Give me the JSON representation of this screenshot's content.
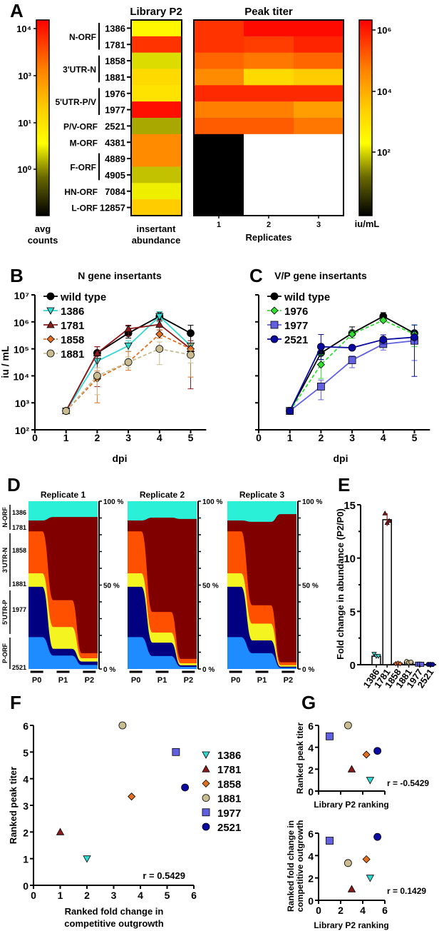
{
  "panel_labels": [
    "A",
    "B",
    "C",
    "D",
    "E",
    "F",
    "G"
  ],
  "chart_data": [
    {
      "panel": "A",
      "type": "heatmap",
      "library_title": "Library P2",
      "peak_title": "Peak titer",
      "rows": [
        "1386",
        "1781",
        "1858",
        "1881",
        "1976",
        "1977",
        "2521",
        "4381",
        "4889",
        "4905",
        "7084",
        "12857"
      ],
      "groups": [
        {
          "name": "N-ORF",
          "rows": [
            0,
            1
          ]
        },
        {
          "name": "3'UTR-N",
          "rows": [
            2,
            3
          ]
        },
        {
          "name": "5'UTR-P/V",
          "rows": [
            4,
            5
          ]
        },
        {
          "name": "P/V-ORF",
          "rows": [
            6
          ]
        },
        {
          "name": "M-ORF",
          "rows": [
            7
          ]
        },
        {
          "name": "F-ORF",
          "rows": [
            8,
            9
          ]
        },
        {
          "name": "HN-ORF",
          "rows": [
            10
          ]
        },
        {
          "name": "L-ORF",
          "rows": [
            11
          ]
        }
      ],
      "library_levels": [
        0.4,
        0.9,
        0.33,
        0.5,
        0.47,
        0.97,
        0.27,
        0.72,
        0.72,
        0.3,
        0.35,
        0.55
      ],
      "peak_levels": [
        [
          0.9,
          0.98,
          0.98
        ],
        [
          0.9,
          0.88,
          0.93
        ],
        [
          0.8,
          0.77,
          0.8
        ],
        [
          0.72,
          0.5,
          0.55
        ],
        [
          0.92,
          0.92,
          0.92
        ],
        [
          0.75,
          0.75,
          0.67
        ],
        [
          0.82,
          0.82,
          0.77
        ],
        [
          0,
          null,
          null
        ],
        [
          0,
          null,
          null
        ],
        [
          0,
          null,
          null
        ],
        [
          0,
          null,
          null
        ],
        [
          0,
          null,
          null
        ]
      ],
      "colormap": [
        "#000000",
        "#6b6b00",
        "#ffff00",
        "#ffcc00",
        "#ff8000",
        "#ff0000"
      ],
      "left_colorbar": {
        "ticks": [
          "10⁴",
          "10³",
          "10¹",
          "10⁰"
        ],
        "label_lines": [
          "avg",
          "counts"
        ]
      },
      "right_colorbar": {
        "ticks": [
          "10⁶",
          "10⁴",
          "10²"
        ],
        "label": "iu/mL"
      },
      "library_xlabel_lines": [
        "insertant",
        "abundance"
      ],
      "replicate_ticks": [
        "1",
        "2",
        "3"
      ],
      "xlabel": "Replicates"
    },
    {
      "panel": "B",
      "type": "line",
      "title": "N gene insertants",
      "xlabel": "dpi",
      "ylabel": "iu / mL",
      "yscale": "log",
      "ylim": [
        100,
        10000000
      ],
      "xlim": [
        0,
        5.5
      ],
      "x_ticks": [
        "0",
        "1",
        "2",
        "3",
        "4",
        "5"
      ],
      "y_ticks": [
        "10²",
        "10³",
        "10⁴",
        "10⁵",
        "10⁶",
        "10⁷"
      ],
      "x": [
        1,
        2,
        3,
        4,
        5
      ],
      "series": [
        {
          "name": "wild type",
          "color": "#000000",
          "marker": "circle",
          "dashed": false,
          "values": [
            500,
            70000,
            380000,
            1600000,
            380000
          ],
          "upper": [
            600,
            120000,
            700000,
            2300000,
            750000
          ],
          "lower": [
            400,
            40000,
            250000,
            1100000,
            150000
          ]
        },
        {
          "name": "1386",
          "color": "#30d8d0",
          "marker": "triangle-down",
          "dashed": false,
          "values": [
            500,
            35000,
            130000,
            1600000,
            130000
          ],
          "upper": [
            600,
            60000,
            200000,
            2400000,
            200000
          ],
          "lower": [
            400,
            20000,
            80000,
            1000000,
            80000
          ]
        },
        {
          "name": "1781",
          "color": "#8b1a1a",
          "marker": "triangle-up",
          "dashed": false,
          "values": [
            500,
            70000,
            550000,
            800000,
            100000
          ],
          "upper": [
            600,
            120000,
            750000,
            1100000,
            200000
          ],
          "lower": [
            400,
            4000,
            300000,
            500000,
            3300
          ]
        },
        {
          "name": "1858",
          "color": "#e07020",
          "marker": "diamond",
          "dashed": true,
          "values": [
            500,
            8000,
            32000,
            350000,
            100000
          ],
          "upper": [
            600,
            15000,
            80000,
            500000,
            150000
          ],
          "lower": [
            400,
            1000,
            16000,
            250000,
            9000
          ]
        },
        {
          "name": "1881",
          "color": "#c8bc90",
          "marker": "circle",
          "dashed": true,
          "values": [
            500,
            10000,
            32000,
            100000,
            60000
          ],
          "upper": [
            600,
            20000,
            50000,
            180000,
            90000
          ],
          "lower": [
            400,
            2000,
            20000,
            26000,
            30000
          ]
        }
      ]
    },
    {
      "panel": "C",
      "type": "line",
      "title": "V/P gene insertants",
      "xlabel": "dpi",
      "yscale": "log",
      "ylim": [
        100,
        10000000
      ],
      "xlim": [
        0,
        5.5
      ],
      "x_ticks": [
        "0",
        "1",
        "2",
        "3",
        "4",
        "5"
      ],
      "x": [
        1,
        2,
        3,
        4,
        5
      ],
      "series": [
        {
          "name": "wild type",
          "color": "#000000",
          "marker": "circle",
          "dashed": false,
          "values": [
            500,
            70000,
            380000,
            1600000,
            380000
          ],
          "upper": [
            600,
            100000,
            650000,
            2200000,
            750000
          ],
          "lower": [
            400,
            40000,
            250000,
            1100000,
            150000
          ]
        },
        {
          "name": "1976",
          "color": "#30e030",
          "marker": "diamond",
          "dashed": true,
          "values": [
            500,
            26000,
            350000,
            1150000,
            350000
          ],
          "upper": [
            600,
            60000,
            450000,
            1300000,
            750000
          ],
          "lower": [
            400,
            8000,
            250000,
            1000000,
            120000
          ]
        },
        {
          "name": "1977",
          "color": "#6060e0",
          "marker": "square",
          "dashed": false,
          "values": [
            500,
            4000,
            38000,
            150000,
            200000
          ],
          "upper": [
            600,
            7000,
            55000,
            260000,
            300000
          ],
          "lower": [
            400,
            1300,
            20000,
            90000,
            37000
          ]
        },
        {
          "name": "2521",
          "color": "#0a0aa0",
          "marker": "circle",
          "dashed": false,
          "values": [
            500,
            120000,
            110000,
            220000,
            270000
          ],
          "upper": [
            600,
            340000,
            120000,
            330000,
            770000
          ],
          "lower": [
            400,
            40000,
            100000,
            150000,
            9500
          ]
        }
      ]
    },
    {
      "panel": "D",
      "type": "area",
      "stages": [
        "P0",
        "P1",
        "P2"
      ],
      "insertants": [
        "1386",
        "1781",
        "1858",
        "1881",
        "1977",
        "2521"
      ],
      "colors": [
        "#2af0d8",
        "#800000",
        "#ff5000",
        "#f4f420",
        "#000080",
        "#1e8cff"
      ],
      "groups": [
        {
          "name": "N-ORF",
          "labels": [
            "1386",
            "1781"
          ]
        },
        {
          "name": "3'UTR-N",
          "labels": [
            "1858",
            "1881"
          ]
        },
        {
          "name": "5'UTR-P",
          "labels": [
            "1977"
          ]
        },
        {
          "name": "P-ORF",
          "labels": [
            "2521"
          ]
        }
      ],
      "y_ticks": [
        "100 %",
        "50 %",
        "0 %"
      ],
      "replicates": [
        {
          "name": "Replicate 1",
          "percent": [
            [
              11.5,
              6.5,
              25,
              8,
              30,
              19
            ],
            [
              9.4,
              49.6,
              16,
              13,
              4,
              8
            ],
            [
              9.4,
              81.2,
              3,
              2,
              2,
              2.4
            ]
          ]
        },
        {
          "name": "Replicate 2",
          "percent": [
            [
              11.5,
              6.5,
              25,
              8,
              30,
              19
            ],
            [
              9.8,
              56.2,
              12.3,
              6,
              8,
              7.7
            ],
            [
              10.6,
              83.4,
              2.6,
              1.2,
              0.9,
              1.3
            ]
          ]
        },
        {
          "name": "Replicate 3",
          "percent": [
            [
              11.5,
              6.5,
              25,
              8,
              30,
              19
            ],
            [
              12.3,
              49.7,
              11,
              10,
              7.6,
              9.4
            ],
            [
              7.7,
              88.3,
              1.7,
              0.9,
              0.7,
              0.7
            ]
          ]
        }
      ]
    },
    {
      "panel": "E",
      "type": "bar",
      "ylabel": "Fold change in abundance (P2/P0)",
      "ylim": [
        0,
        15
      ],
      "y_ticks": [
        "0",
        "5",
        "10",
        "15"
      ],
      "categories": [
        "1386",
        "1781",
        "1858",
        "1881",
        "1977",
        "2521"
      ],
      "values": [
        0.8,
        13.6,
        0.12,
        0.25,
        0.05,
        0.03
      ],
      "points": [
        [
          1.0,
          0.8,
          0.8
        ],
        [
          14.2,
          13.3,
          13.5
        ],
        [
          0.1,
          0.15,
          0.1
        ],
        [
          0.3,
          0.2,
          0.25
        ],
        [
          0.05,
          0.05,
          0.04
        ],
        [
          0.03,
          0.03,
          0.02
        ]
      ],
      "colors": [
        "#30d8d0",
        "#8b1a1a",
        "#e07020",
        "#c8bc90",
        "#6060e0",
        "#0a0aa0"
      ],
      "markers": [
        "triangle-down",
        "triangle-up",
        "diamond",
        "circle",
        "square",
        "circle"
      ]
    },
    {
      "panel": "F",
      "type": "scatter",
      "xlabel_lines": [
        "Ranked fold change in",
        "competitive outgrowth"
      ],
      "ylabel": "Ranked peak titer",
      "xlim": [
        0,
        6
      ],
      "ylim": [
        0,
        6
      ],
      "x_ticks": [
        "0",
        "1",
        "2",
        "3",
        "4",
        "5",
        "6"
      ],
      "y_ticks": [
        "0",
        "1",
        "2",
        "3",
        "4",
        "5",
        "6"
      ],
      "annotation": "r = 0.5429",
      "legend": "right",
      "points": [
        {
          "name": "1386",
          "x": 2,
          "y": 1,
          "color": "#30d8d0",
          "marker": "triangle-down"
        },
        {
          "name": "1781",
          "x": 1,
          "y": 2,
          "color": "#8b1a1a",
          "marker": "triangle-up"
        },
        {
          "name": "1858",
          "x": 3.67,
          "y": 3.33,
          "color": "#e07020",
          "marker": "diamond"
        },
        {
          "name": "1881",
          "x": 3.33,
          "y": 6,
          "color": "#c8bc90",
          "marker": "circle"
        },
        {
          "name": "1977",
          "x": 5.33,
          "y": 5,
          "color": "#6060e0",
          "marker": "square"
        },
        {
          "name": "2521",
          "x": 5.67,
          "y": 3.67,
          "color": "#0a0aa0",
          "marker": "circle"
        }
      ]
    },
    {
      "panel": "G-top",
      "type": "scatter",
      "xlabel": "Library P2 ranking",
      "ylabel": "Ranked peak titer",
      "xlim": [
        0,
        6
      ],
      "ylim": [
        0,
        6
      ],
      "y_ticks": [
        "0",
        "2",
        "4",
        "6"
      ],
      "annotation": "r = -0.5429",
      "points": [
        {
          "name": "1977",
          "x": 1,
          "y": 5,
          "color": "#6060e0",
          "marker": "square"
        },
        {
          "name": "1881",
          "x": 2.67,
          "y": 6,
          "color": "#c8bc90",
          "marker": "circle"
        },
        {
          "name": "1781",
          "x": 3,
          "y": 2,
          "color": "#8b1a1a",
          "marker": "triangle-up"
        },
        {
          "name": "1858",
          "x": 4.33,
          "y": 3.33,
          "color": "#e07020",
          "marker": "diamond"
        },
        {
          "name": "2521",
          "x": 5.33,
          "y": 3.67,
          "color": "#0a0aa0",
          "marker": "circle"
        },
        {
          "name": "1386",
          "x": 4.67,
          "y": 1,
          "color": "#30d8d0",
          "marker": "triangle-down"
        }
      ]
    },
    {
      "panel": "G-bottom",
      "type": "scatter",
      "xlabel": "Library P2 ranking",
      "ylabel_lines": [
        "Ranked fold change in",
        "competitive outgrowth"
      ],
      "xlim": [
        0,
        6
      ],
      "ylim": [
        0,
        6
      ],
      "x_ticks": [
        "0",
        "2",
        "4",
        "6"
      ],
      "y_ticks": [
        "0",
        "2",
        "4",
        "6"
      ],
      "annotation": "r = 0.1429",
      "points": [
        {
          "name": "1977",
          "x": 1,
          "y": 5.33,
          "color": "#6060e0",
          "marker": "square"
        },
        {
          "name": "1881",
          "x": 2.67,
          "y": 3.33,
          "color": "#c8bc90",
          "marker": "circle"
        },
        {
          "name": "1781",
          "x": 3,
          "y": 1,
          "color": "#8b1a1a",
          "marker": "triangle-up"
        },
        {
          "name": "1858",
          "x": 4.33,
          "y": 3.67,
          "color": "#e07020",
          "marker": "diamond"
        },
        {
          "name": "1386",
          "x": 4.67,
          "y": 2,
          "color": "#30d8d0",
          "marker": "triangle-down"
        },
        {
          "name": "2521",
          "x": 5.33,
          "y": 5.67,
          "color": "#0a0aa0",
          "marker": "circle"
        }
      ]
    }
  ]
}
